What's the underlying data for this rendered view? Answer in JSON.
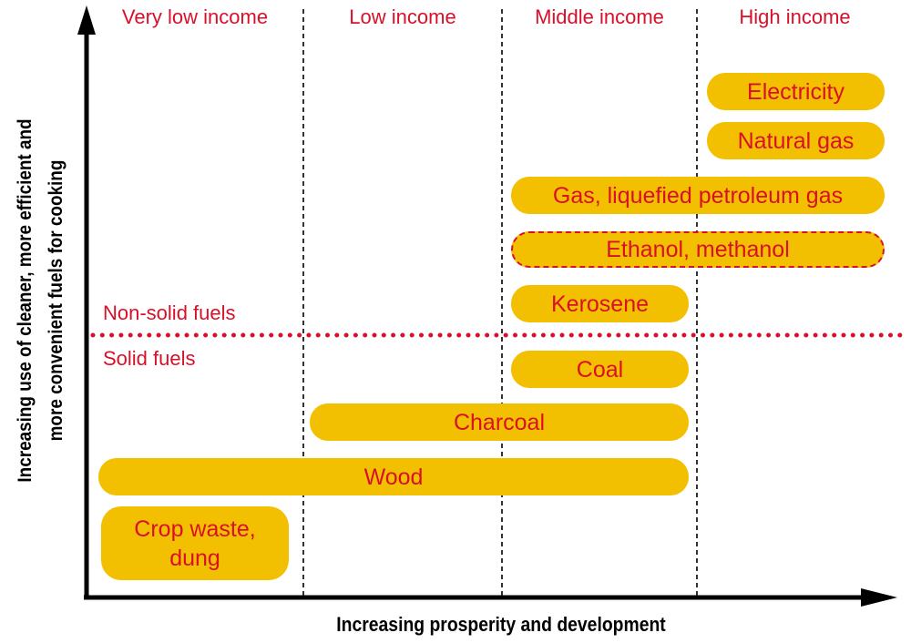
{
  "colors": {
    "bar_fill": "#f2c000",
    "accent_red": "#d9102a",
    "axis": "#000000"
  },
  "headers": [
    "Very low income",
    "Low income",
    "Middle income",
    "High income"
  ],
  "divider": {
    "above_label": "Non-solid fuels",
    "below_label": "Solid fuels"
  },
  "fuels": {
    "electricity": "Electricity",
    "natural_gas": "Natural gas",
    "lpg": "Gas, liquefied petroleum gas",
    "ethanol": "Ethanol, methanol",
    "kerosene": "Kerosene",
    "coal": "Coal",
    "charcoal": "Charcoal",
    "wood": "Wood",
    "crop_line1": "Crop waste,",
    "crop_line2": "dung"
  },
  "axes": {
    "x_label": "Increasing prosperity and development",
    "y_label_line1": "Increasing use of cleaner, more efficient and",
    "y_label_line2": "more convenient fuels for cooking"
  }
}
